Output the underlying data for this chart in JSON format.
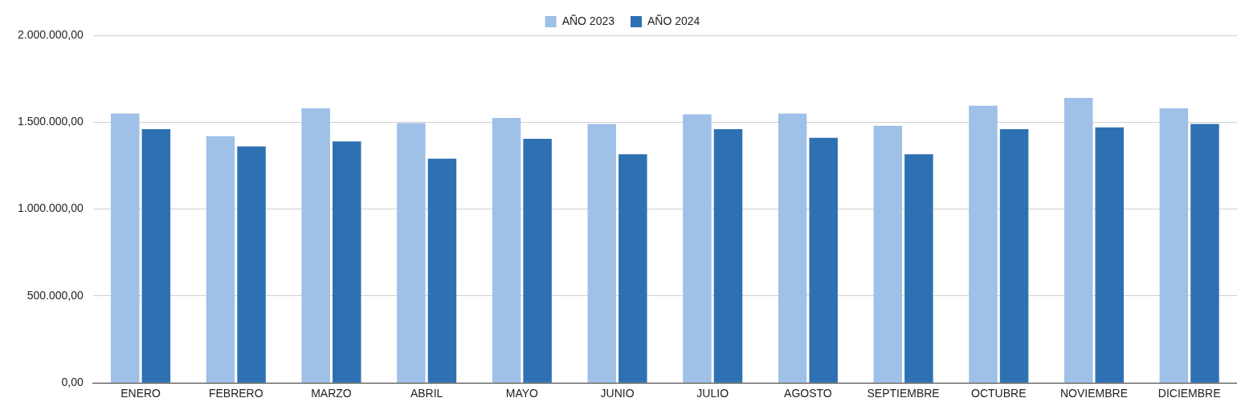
{
  "chart_data": {
    "type": "bar",
    "categories": [
      "ENERO",
      "FEBRERO",
      "MARZO",
      "ABRIL",
      "MAYO",
      "JUNIO",
      "JULIO",
      "AGOSTO",
      "SEPTIEMBRE",
      "OCTUBRE",
      "NOVIEMBRE",
      "DICIEMBRE"
    ],
    "series": [
      {
        "name": "AÑO 2023",
        "color": "#9fc0e7",
        "values": [
          1550000,
          1420000,
          1580000,
          1495000,
          1525000,
          1490000,
          1545000,
          1550000,
          1480000,
          1595000,
          1640000,
          1580000
        ]
      },
      {
        "name": "AÑO 2024",
        "color": "#2e71b3",
        "values": [
          1460000,
          1360000,
          1390000,
          1290000,
          1405000,
          1315000,
          1460000,
          1410000,
          1315000,
          1460000,
          1470000,
          1490000
        ]
      }
    ],
    "ylim": [
      0,
      2000000
    ],
    "yticks": [
      {
        "value": 0,
        "label": "0,00"
      },
      {
        "value": 500000,
        "label": "500.000,00"
      },
      {
        "value": 1000000,
        "label": "1.000.000,00"
      },
      {
        "value": 1500000,
        "label": "1.500.000,00"
      },
      {
        "value": 2000000,
        "label": "2.000.000,00"
      }
    ],
    "grid": "y",
    "legend": "top"
  }
}
